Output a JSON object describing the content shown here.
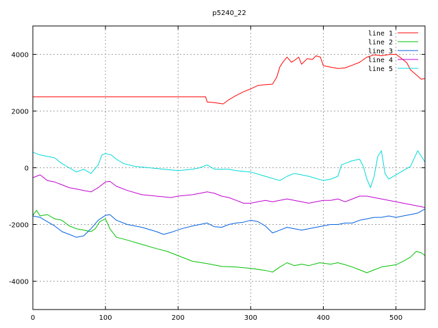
{
  "chart_data": {
    "type": "line",
    "title": "p5240_22",
    "xlabel": "",
    "ylabel": "",
    "xlim": [
      0,
      540
    ],
    "ylim": [
      -5000,
      5000
    ],
    "xticks": [
      0,
      100,
      200,
      300,
      400,
      500
    ],
    "yticks": [
      -4000,
      -2000,
      0,
      2000,
      4000
    ],
    "grid": true,
    "legend_position": "top-right",
    "series": [
      {
        "name": "line 1",
        "color": "#ff0000",
        "points": [
          [
            0,
            2500
          ],
          [
            100,
            2500
          ],
          [
            200,
            2500
          ],
          [
            238,
            2500
          ],
          [
            240,
            2320
          ],
          [
            250,
            2300
          ],
          [
            262,
            2250
          ],
          [
            270,
            2400
          ],
          [
            280,
            2550
          ],
          [
            290,
            2680
          ],
          [
            300,
            2780
          ],
          [
            310,
            2900
          ],
          [
            320,
            2930
          ],
          [
            330,
            2950
          ],
          [
            336,
            3200
          ],
          [
            340,
            3550
          ],
          [
            345,
            3750
          ],
          [
            350,
            3900
          ],
          [
            356,
            3720
          ],
          [
            360,
            3780
          ],
          [
            366,
            3900
          ],
          [
            370,
            3650
          ],
          [
            378,
            3850
          ],
          [
            385,
            3820
          ],
          [
            390,
            3950
          ],
          [
            396,
            3900
          ],
          [
            400,
            3600
          ],
          [
            410,
            3550
          ],
          [
            420,
            3500
          ],
          [
            430,
            3520
          ],
          [
            440,
            3620
          ],
          [
            450,
            3720
          ],
          [
            460,
            3900
          ],
          [
            470,
            3980
          ],
          [
            480,
            3950
          ],
          [
            490,
            3990
          ],
          [
            500,
            4000
          ],
          [
            508,
            3850
          ],
          [
            515,
            3700
          ],
          [
            520,
            3450
          ],
          [
            527,
            3300
          ],
          [
            535,
            3120
          ],
          [
            540,
            3150
          ]
        ]
      },
      {
        "name": "line 2",
        "color": "#00c000",
        "points": [
          [
            0,
            -1680
          ],
          [
            5,
            -1500
          ],
          [
            10,
            -1700
          ],
          [
            20,
            -1650
          ],
          [
            30,
            -1800
          ],
          [
            40,
            -1850
          ],
          [
            50,
            -2050
          ],
          [
            60,
            -2150
          ],
          [
            70,
            -2200
          ],
          [
            80,
            -2250
          ],
          [
            86,
            -2150
          ],
          [
            92,
            -1900
          ],
          [
            100,
            -1800
          ],
          [
            106,
            -2150
          ],
          [
            115,
            -2450
          ],
          [
            130,
            -2550
          ],
          [
            150,
            -2700
          ],
          [
            170,
            -2850
          ],
          [
            185,
            -2950
          ],
          [
            200,
            -3100
          ],
          [
            220,
            -3300
          ],
          [
            240,
            -3380
          ],
          [
            260,
            -3480
          ],
          [
            280,
            -3500
          ],
          [
            300,
            -3550
          ],
          [
            320,
            -3620
          ],
          [
            330,
            -3680
          ],
          [
            340,
            -3500
          ],
          [
            350,
            -3350
          ],
          [
            360,
            -3450
          ],
          [
            370,
            -3400
          ],
          [
            380,
            -3450
          ],
          [
            395,
            -3350
          ],
          [
            410,
            -3400
          ],
          [
            420,
            -3350
          ],
          [
            430,
            -3420
          ],
          [
            440,
            -3500
          ],
          [
            450,
            -3600
          ],
          [
            460,
            -3700
          ],
          [
            470,
            -3600
          ],
          [
            480,
            -3500
          ],
          [
            500,
            -3420
          ],
          [
            510,
            -3300
          ],
          [
            520,
            -3150
          ],
          [
            528,
            -2950
          ],
          [
            535,
            -3000
          ],
          [
            540,
            -3100
          ]
        ]
      },
      {
        "name": "line 3",
        "color": "#0060e0",
        "points": [
          [
            0,
            -1700
          ],
          [
            10,
            -1750
          ],
          [
            20,
            -1900
          ],
          [
            30,
            -2050
          ],
          [
            40,
            -2250
          ],
          [
            50,
            -2350
          ],
          [
            60,
            -2450
          ],
          [
            70,
            -2400
          ],
          [
            80,
            -2150
          ],
          [
            90,
            -1850
          ],
          [
            100,
            -1680
          ],
          [
            106,
            -1650
          ],
          [
            115,
            -1850
          ],
          [
            130,
            -2000
          ],
          [
            150,
            -2100
          ],
          [
            170,
            -2250
          ],
          [
            180,
            -2350
          ],
          [
            190,
            -2280
          ],
          [
            205,
            -2150
          ],
          [
            220,
            -2050
          ],
          [
            230,
            -2000
          ],
          [
            240,
            -1950
          ],
          [
            250,
            -2080
          ],
          [
            260,
            -2100
          ],
          [
            270,
            -2000
          ],
          [
            280,
            -1950
          ],
          [
            290,
            -1920
          ],
          [
            300,
            -1850
          ],
          [
            310,
            -1900
          ],
          [
            320,
            -2050
          ],
          [
            330,
            -2300
          ],
          [
            340,
            -2200
          ],
          [
            350,
            -2100
          ],
          [
            360,
            -2150
          ],
          [
            370,
            -2200
          ],
          [
            380,
            -2150
          ],
          [
            390,
            -2100
          ],
          [
            400,
            -2050
          ],
          [
            410,
            -2000
          ],
          [
            420,
            -2000
          ],
          [
            430,
            -1950
          ],
          [
            440,
            -1950
          ],
          [
            450,
            -1850
          ],
          [
            460,
            -1800
          ],
          [
            470,
            -1750
          ],
          [
            480,
            -1750
          ],
          [
            490,
            -1700
          ],
          [
            500,
            -1750
          ],
          [
            510,
            -1700
          ],
          [
            520,
            -1650
          ],
          [
            530,
            -1600
          ],
          [
            540,
            -1450
          ]
        ]
      },
      {
        "name": "line 4",
        "color": "#c000d0",
        "points": [
          [
            0,
            -350
          ],
          [
            10,
            -250
          ],
          [
            20,
            -450
          ],
          [
            30,
            -500
          ],
          [
            40,
            -600
          ],
          [
            50,
            -700
          ],
          [
            60,
            -750
          ],
          [
            70,
            -800
          ],
          [
            80,
            -850
          ],
          [
            90,
            -700
          ],
          [
            100,
            -500
          ],
          [
            106,
            -480
          ],
          [
            115,
            -650
          ],
          [
            130,
            -800
          ],
          [
            150,
            -950
          ],
          [
            170,
            -1000
          ],
          [
            190,
            -1050
          ],
          [
            200,
            -1000
          ],
          [
            220,
            -950
          ],
          [
            230,
            -900
          ],
          [
            240,
            -850
          ],
          [
            250,
            -900
          ],
          [
            260,
            -1000
          ],
          [
            270,
            -1050
          ],
          [
            280,
            -1150
          ],
          [
            290,
            -1250
          ],
          [
            300,
            -1250
          ],
          [
            310,
            -1200
          ],
          [
            320,
            -1150
          ],
          [
            330,
            -1200
          ],
          [
            340,
            -1150
          ],
          [
            350,
            -1100
          ],
          [
            360,
            -1150
          ],
          [
            370,
            -1200
          ],
          [
            380,
            -1250
          ],
          [
            390,
            -1200
          ],
          [
            400,
            -1150
          ],
          [
            410,
            -1150
          ],
          [
            420,
            -1100
          ],
          [
            430,
            -1200
          ],
          [
            440,
            -1100
          ],
          [
            450,
            -1000
          ],
          [
            460,
            -1000
          ],
          [
            470,
            -1050
          ],
          [
            480,
            -1100
          ],
          [
            490,
            -1150
          ],
          [
            500,
            -1200
          ],
          [
            510,
            -1250
          ],
          [
            520,
            -1300
          ],
          [
            530,
            -1350
          ],
          [
            540,
            -1400
          ]
        ]
      },
      {
        "name": "line 5",
        "color": "#00d8d8",
        "points": [
          [
            0,
            550
          ],
          [
            10,
            450
          ],
          [
            20,
            400
          ],
          [
            30,
            350
          ],
          [
            40,
            150
          ],
          [
            50,
            0
          ],
          [
            60,
            -150
          ],
          [
            70,
            -50
          ],
          [
            80,
            -200
          ],
          [
            90,
            100
          ],
          [
            95,
            450
          ],
          [
            100,
            500
          ],
          [
            108,
            450
          ],
          [
            115,
            300
          ],
          [
            125,
            150
          ],
          [
            140,
            50
          ],
          [
            160,
            0
          ],
          [
            180,
            -50
          ],
          [
            200,
            -100
          ],
          [
            220,
            -50
          ],
          [
            230,
            0
          ],
          [
            240,
            100
          ],
          [
            250,
            -50
          ],
          [
            270,
            -50
          ],
          [
            280,
            -100
          ],
          [
            300,
            -150
          ],
          [
            320,
            -300
          ],
          [
            340,
            -450
          ],
          [
            350,
            -300
          ],
          [
            360,
            -200
          ],
          [
            380,
            -300
          ],
          [
            400,
            -450
          ],
          [
            410,
            -400
          ],
          [
            420,
            -300
          ],
          [
            425,
            100
          ],
          [
            440,
            250
          ],
          [
            450,
            300
          ],
          [
            455,
            50
          ],
          [
            460,
            -400
          ],
          [
            465,
            -700
          ],
          [
            470,
            -300
          ],
          [
            475,
            400
          ],
          [
            480,
            600
          ],
          [
            485,
            -200
          ],
          [
            490,
            -400
          ],
          [
            500,
            -250
          ],
          [
            510,
            -100
          ],
          [
            520,
            50
          ],
          [
            530,
            600
          ],
          [
            535,
            400
          ],
          [
            540,
            200
          ]
        ]
      }
    ]
  }
}
